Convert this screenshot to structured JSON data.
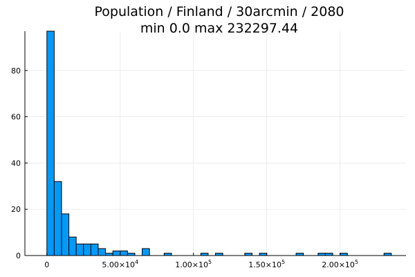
{
  "chart_data": {
    "type": "bar",
    "title_line1": "Population / Finland / 30arcmin / 2080",
    "title_line2": "min 0.0  max 232297.44",
    "xlabel": "",
    "ylabel": "",
    "bin_width": 5000,
    "xlim": [
      -15000,
      245000
    ],
    "ylim": [
      0,
      97
    ],
    "grid": true,
    "legend": "none",
    "bar_color": "#009af9",
    "x_ticks": [
      {
        "value": 0,
        "base": "0",
        "exp": ""
      },
      {
        "value": 50000,
        "base": "5.00×10",
        "exp": "4"
      },
      {
        "value": 100000,
        "base": "1.00×10",
        "exp": "5"
      },
      {
        "value": 150000,
        "base": "1.50×10",
        "exp": "5"
      },
      {
        "value": 200000,
        "base": "2.00×10",
        "exp": "5"
      }
    ],
    "y_ticks": [
      {
        "value": 0,
        "label": "0"
      },
      {
        "value": 20,
        "label": "20"
      },
      {
        "value": 40,
        "label": "40"
      },
      {
        "value": 60,
        "label": "60"
      },
      {
        "value": 80,
        "label": "80"
      }
    ],
    "bins": [
      {
        "start": 0,
        "count": 97
      },
      {
        "start": 5000,
        "count": 32
      },
      {
        "start": 10000,
        "count": 18
      },
      {
        "start": 15000,
        "count": 8
      },
      {
        "start": 20000,
        "count": 5
      },
      {
        "start": 25000,
        "count": 5
      },
      {
        "start": 30000,
        "count": 5
      },
      {
        "start": 35000,
        "count": 3
      },
      {
        "start": 40000,
        "count": 1
      },
      {
        "start": 45000,
        "count": 2
      },
      {
        "start": 50000,
        "count": 2
      },
      {
        "start": 55000,
        "count": 1
      },
      {
        "start": 65000,
        "count": 3
      },
      {
        "start": 80000,
        "count": 1
      },
      {
        "start": 105000,
        "count": 1
      },
      {
        "start": 115000,
        "count": 1
      },
      {
        "start": 135000,
        "count": 1
      },
      {
        "start": 145000,
        "count": 1
      },
      {
        "start": 170000,
        "count": 1
      },
      {
        "start": 185000,
        "count": 1
      },
      {
        "start": 190000,
        "count": 1
      },
      {
        "start": 200000,
        "count": 1
      },
      {
        "start": 230000,
        "count": 1
      }
    ]
  }
}
